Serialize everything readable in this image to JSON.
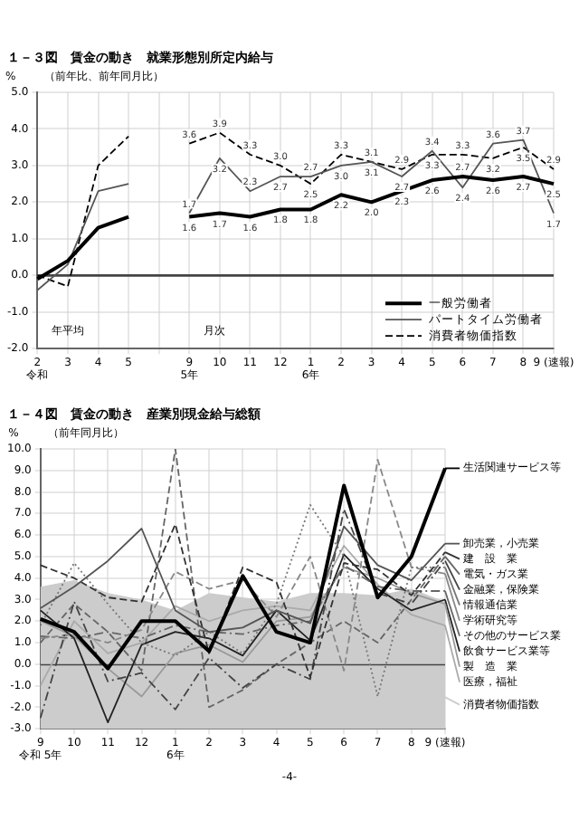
{
  "chart_data": [
    {
      "type": "line",
      "title": "１－３図　賃金の動き　就業形態別所定内給与",
      "subtitle": "（前年比、前年同月比）",
      "ylabel": "%",
      "categories": [
        "2\n令和",
        "3",
        "4",
        "5",
        null,
        "9\n5年",
        "10",
        "11",
        "12",
        "1\n6年",
        "2",
        "3",
        "4",
        "5",
        "6",
        "7",
        "8",
        "9 (速報)"
      ],
      "series": [
        {
          "name": "一般労働者",
          "color": "#000000",
          "line_style": "solid",
          "values": [
            -0.1,
            0.4,
            1.3,
            1.6,
            null,
            1.6,
            1.7,
            1.6,
            1.8,
            1.8,
            2.2,
            2.0,
            2.3,
            2.6,
            2.7,
            2.6,
            2.7,
            2.5
          ],
          "value_labels": [
            null,
            null,
            null,
            null,
            null,
            "1.6",
            "1.7",
            "1.6",
            "1.8",
            "1.8",
            "2.2",
            "2.0",
            "2.3",
            "2.6",
            "2.7",
            "2.6",
            "2.7",
            "2.5"
          ]
        },
        {
          "name": "パートタイム労働者",
          "color": "#555555",
          "line_style": "solid",
          "values": [
            -0.4,
            0.3,
            2.3,
            2.5,
            null,
            1.7,
            3.2,
            2.3,
            2.7,
            2.7,
            3.0,
            3.1,
            2.7,
            3.4,
            2.4,
            3.6,
            3.7,
            1.7
          ],
          "value_labels": [
            null,
            null,
            null,
            null,
            null,
            "1.7",
            "3.2",
            "2.3",
            "2.7",
            "2.7",
            "3.0",
            "3.1",
            "2.7",
            "3.4",
            "2.4",
            "3.6",
            "3.7",
            "1.7"
          ]
        },
        {
          "name": "消費者物価指数",
          "color": "#000000",
          "line_style": "dashed",
          "values": [
            0.0,
            -0.3,
            3.0,
            3.8,
            null,
            3.6,
            3.9,
            3.3,
            3.0,
            2.5,
            3.3,
            3.1,
            2.9,
            3.3,
            3.3,
            3.2,
            3.5,
            2.9
          ],
          "value_labels": [
            null,
            null,
            null,
            null,
            null,
            "3.6",
            "3.9",
            "3.3",
            "3.0",
            "2.5",
            "3.3",
            "3.1",
            "2.9",
            "3.3",
            "3.3",
            "3.2",
            "3.5",
            "2.9"
          ]
        }
      ],
      "ylim": [
        -2,
        5
      ],
      "yticks": [
        {
          "value": -2,
          "label": "-2.0"
        },
        {
          "value": -1,
          "label": "-1.0"
        },
        {
          "value": 0,
          "label": "0.0"
        },
        {
          "value": 1,
          "label": "1.0"
        },
        {
          "value": 2,
          "label": "2.0"
        },
        {
          "value": 3,
          "label": "3.0"
        },
        {
          "value": 4,
          "label": "4.0"
        },
        {
          "value": 5,
          "label": "5.0"
        }
      ],
      "grid": true,
      "legend": "bottom right",
      "marker": "none",
      "annotations": [
        "年平均",
        "月次"
      ]
    },
    {
      "type": "line",
      "title": "１－４図　賃金の動き　産業別現金給与総額",
      "subtitle": "（前年同月比）",
      "ylabel": "%",
      "categories": [
        "9\n令和 5年",
        "10",
        "11",
        "12",
        "1\n6年",
        "2",
        "3",
        "4",
        "5",
        "6",
        "7",
        "8",
        "9 (速報)"
      ],
      "series": [
        {
          "name": "生活関連サービス等",
          "color": "#000000",
          "line_style": "solid",
          "values": [
            2.1,
            1.5,
            -0.2,
            2.0,
            2.0,
            0.6,
            4.1,
            1.5,
            1.0,
            8.3,
            3.1,
            5.0,
            9.1
          ]
        },
        {
          "name": "卸売業，小売業",
          "color": "#555555",
          "line_style": "solid",
          "values": [
            2.6,
            3.6,
            4.8,
            6.3,
            2.5,
            1.5,
            1.7,
            2.5,
            1.9,
            6.4,
            4.6,
            3.9,
            5.6
          ]
        },
        {
          "name": "建　設　業",
          "color": "#333333",
          "line_style": "dashed",
          "values": [
            4.6,
            4.0,
            3.1,
            2.9,
            6.5,
            0.5,
            4.5,
            3.8,
            -0.6,
            4.7,
            4.4,
            3.2,
            5.2
          ]
        },
        {
          "name": "金融業，保険業",
          "color": "#444444",
          "line_style": "dashdot",
          "values": [
            -2.5,
            2.9,
            -0.8,
            -0.4,
            -2.1,
            0.3,
            -1.1,
            0.0,
            -0.7,
            7.2,
            3.3,
            2.8,
            4.8
          ]
        },
        {
          "name": "情報通信業",
          "color": "#777777",
          "line_style": "dotted",
          "values": [
            1.8,
            4.7,
            2.8,
            1.0,
            0.4,
            1.5,
            0.5,
            2.8,
            7.4,
            5.0,
            -1.5,
            4.5,
            4.5
          ]
        },
        {
          "name": "学術研究等",
          "color": "#888888",
          "line_style": "dashed",
          "values": [
            1.2,
            1.4,
            1.0,
            1.6,
            4.3,
            3.5,
            3.9,
            2.2,
            5.0,
            -0.3,
            9.5,
            4.5,
            4.2
          ]
        },
        {
          "name": "その他のサービス業",
          "color": "#666666",
          "line_style": "dashdot",
          "values": [
            1.3,
            1.2,
            1.5,
            1.2,
            1.8,
            1.5,
            1.4,
            1.8,
            2.0,
            4.6,
            3.6,
            3.4,
            3.4
          ]
        },
        {
          "name": "飲食サービス業等",
          "color": "#222222",
          "line_style": "solid",
          "values": [
            2.5,
            1.2,
            -2.7,
            0.9,
            1.5,
            1.2,
            0.4,
            2.5,
            1.1,
            5.1,
            3.5,
            2.5,
            3.0
          ]
        },
        {
          "name": "製　造　業",
          "color": "#999999",
          "line_style": "solid",
          "values": [
            2.0,
            1.3,
            -0.2,
            -1.5,
            0.5,
            0.9,
            0.1,
            2.0,
            2.2,
            4.5,
            4.0,
            3.3,
            2.8
          ]
        },
        {
          "name": "医療，福祉",
          "color": "#aaaaaa",
          "line_style": "solid",
          "values": [
            -1.0,
            2.0,
            0.5,
            1.0,
            2.7,
            2.0,
            2.5,
            2.7,
            2.5,
            5.5,
            3.7,
            2.3,
            1.8
          ]
        },
        {
          "name": "電気・ガス業",
          "color": "#666666",
          "line_style": "dashed",
          "values": [
            1.0,
            2.8,
            1.5,
            -0.3,
            10.0,
            -2.0,
            -1.2,
            0.0,
            1.0,
            2.0,
            1.0,
            3.0,
            5.0
          ]
        },
        {
          "name": "消費者物価指数",
          "type": "area",
          "color": "#cccccc",
          "values": [
            3.6,
            3.9,
            3.3,
            3.0,
            2.5,
            3.3,
            3.1,
            2.9,
            3.3,
            3.3,
            3.2,
            3.5,
            2.9
          ]
        }
      ],
      "ylim": [
        -3,
        10
      ],
      "yticks": [
        {
          "value": -3,
          "label": "-3.0"
        },
        {
          "value": -2,
          "label": "-2.0"
        },
        {
          "value": -1,
          "label": "-1.0"
        },
        {
          "value": 0,
          "label": "0.0"
        },
        {
          "value": 1,
          "label": "1.0"
        },
        {
          "value": 2,
          "label": "2.0"
        },
        {
          "value": 3,
          "label": "3.0"
        },
        {
          "value": 4,
          "label": "4.0"
        },
        {
          "value": 5,
          "label": "5.0"
        },
        {
          "value": 6,
          "label": "6.0"
        },
        {
          "value": 7,
          "label": "7.0"
        },
        {
          "value": 8,
          "label": "8.0"
        },
        {
          "value": 9,
          "label": "9.0"
        },
        {
          "value": 10,
          "label": "10.0"
        }
      ],
      "bands": [
        {
          "axis": "y",
          "from": -3,
          "to": 0,
          "color": "#cccccc"
        }
      ],
      "grid": true,
      "legend": "right",
      "marker": "none",
      "annotations": [
        "-4-"
      ]
    }
  ]
}
